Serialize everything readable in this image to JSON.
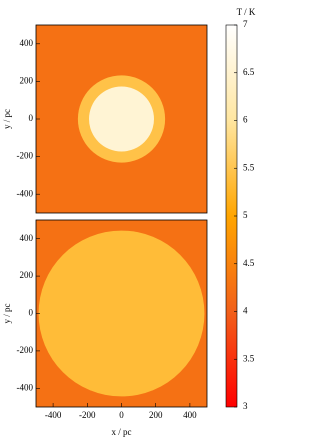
{
  "chart_data": {
    "type": "image",
    "colorbar": {
      "label": "T / K",
      "zlim": [
        3,
        7
      ],
      "ticks": [
        3,
        3.5,
        4,
        4.5,
        5,
        5.5,
        6,
        6.5,
        7
      ],
      "colors": [
        "#ff0000",
        "#f2601a",
        "#ffa500",
        "#ffe6a0",
        "#ffffff"
      ]
    },
    "panels": [
      {
        "ylabel": "y / pc",
        "xlim": [
          -500,
          500
        ],
        "ylim": [
          -500,
          500
        ],
        "yticks": [
          -400,
          -200,
          0,
          200,
          400
        ],
        "background": 4.25,
        "regions": [
          {
            "radius": 255,
            "value": 5.45
          },
          {
            "radius": 190,
            "value": 6.55
          }
        ]
      },
      {
        "ylabel": "y / pc",
        "xlabel": "x / pc",
        "xlim": [
          -500,
          500
        ],
        "ylim": [
          -500,
          500
        ],
        "yticks": [
          -400,
          -200,
          0,
          200,
          400
        ],
        "xticks": [
          -400,
          -200,
          0,
          200,
          400
        ],
        "background": 4.25,
        "regions": [
          {
            "radius": 485,
            "value": 5.35
          }
        ]
      }
    ]
  }
}
